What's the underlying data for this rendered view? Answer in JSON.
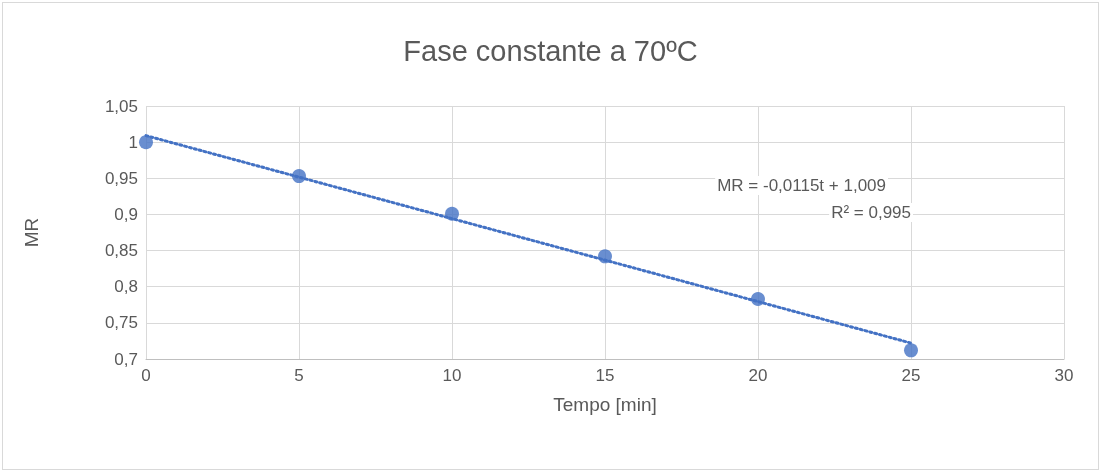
{
  "chart_data": {
    "type": "scatter",
    "title": "Fase constante a 70ºC",
    "xlabel": "Tempo [min]",
    "ylabel": "MR",
    "series": [
      {
        "color": "#4472c4",
        "marker": "circle",
        "x": [
          0,
          5,
          10,
          15,
          20,
          25
        ],
        "values": [
          1.0,
          0.953,
          0.901,
          0.842,
          0.783,
          0.712
        ]
      },
      {
        "type": "line",
        "color": "#4472c4",
        "line_style": "dotted",
        "marker": "none",
        "x": [
          0,
          25
        ],
        "values": [
          1.009,
          0.722
        ]
      }
    ],
    "annotations": [
      "MR = -0,0115t + 1,009",
      "R² = 0,995"
    ],
    "xlim": [
      0,
      30
    ],
    "xticks": [
      0,
      5,
      10,
      15,
      20,
      25,
      30
    ],
    "ylim": [
      0.7,
      1.05
    ],
    "yticks": [
      {
        "value": 0.7,
        "label": "0,7"
      },
      {
        "value": 0.75,
        "label": "0,75"
      },
      {
        "value": 0.8,
        "label": "0,8"
      },
      {
        "value": 0.85,
        "label": "0,85"
      },
      {
        "value": 0.9,
        "label": "0,9"
      },
      {
        "value": 0.95,
        "label": "0,95"
      },
      {
        "value": 1,
        "label": "1"
      },
      {
        "value": 1.05,
        "label": "1,05"
      }
    ],
    "grid": true
  }
}
